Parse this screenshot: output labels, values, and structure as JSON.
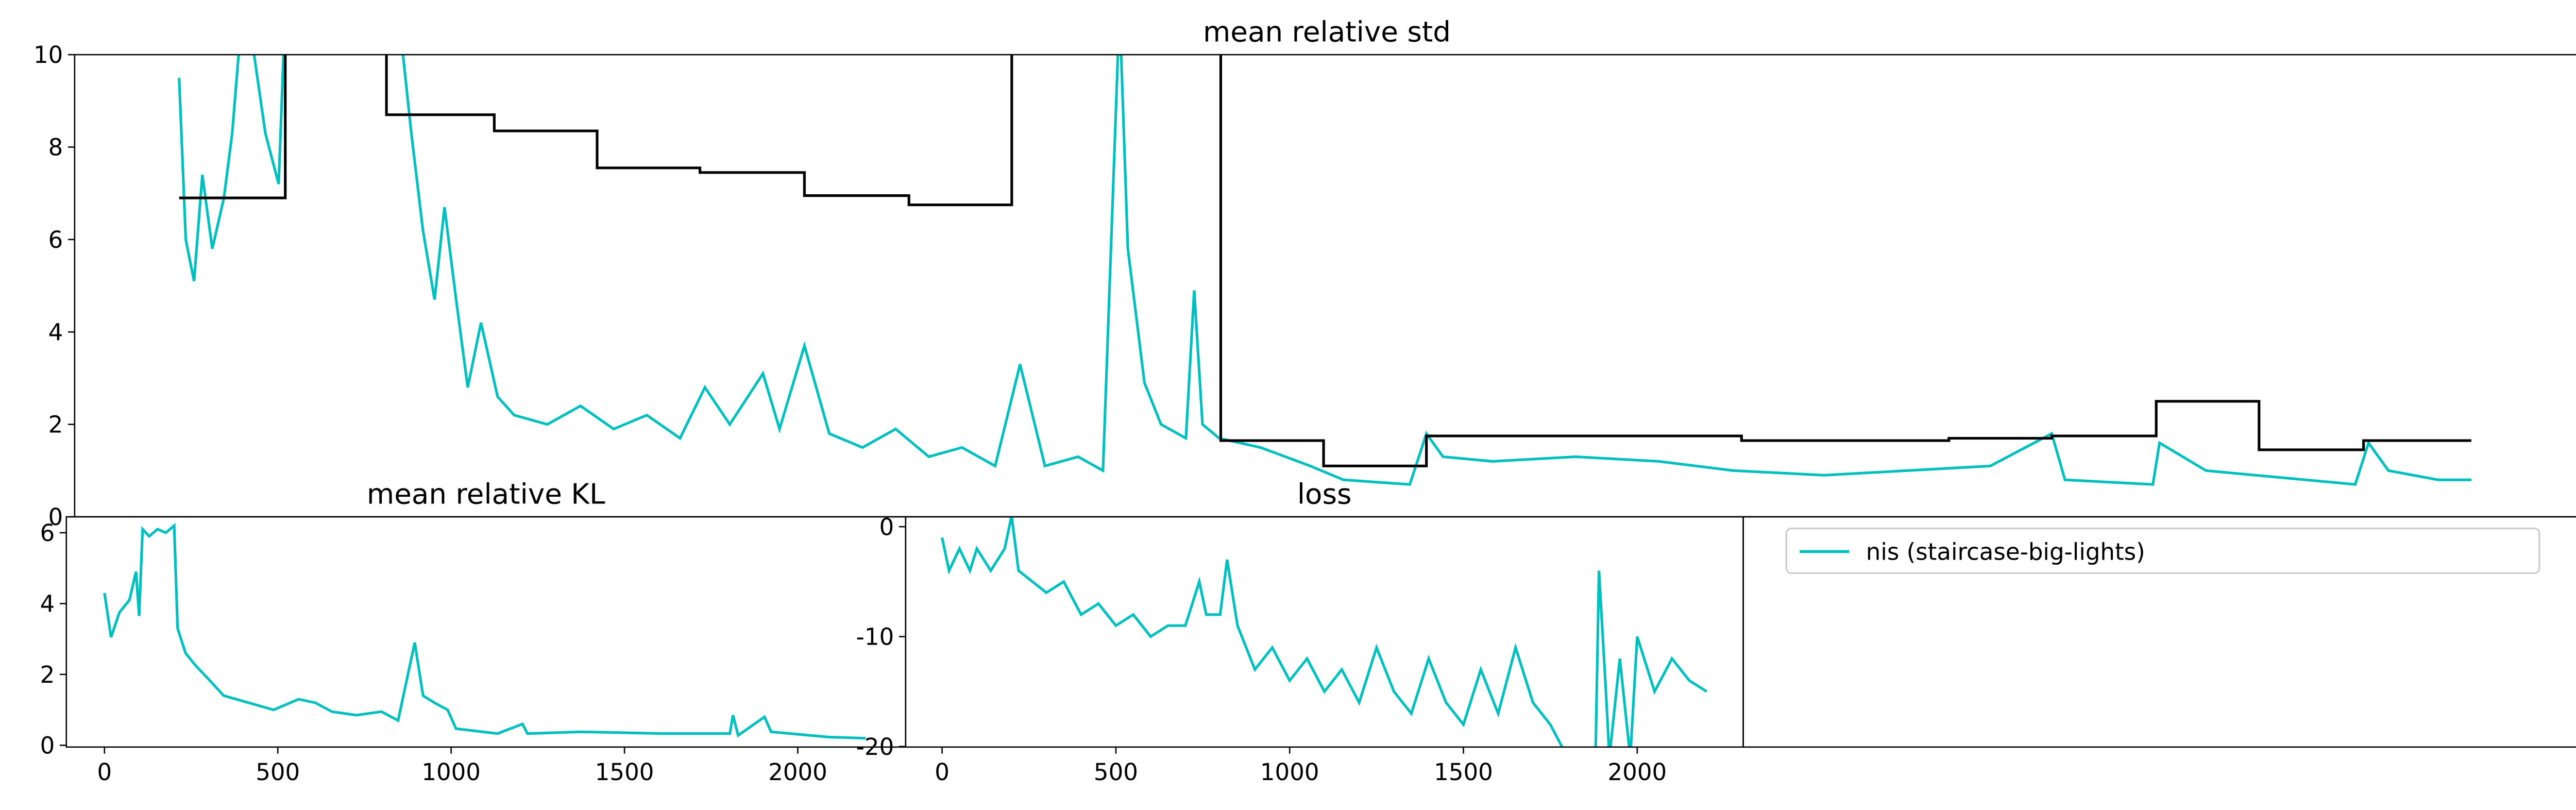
{
  "chart_data": [
    {
      "type": "line",
      "title": "mean relative std",
      "xlim": [
        0,
        1510
      ],
      "ylim": [
        0,
        10
      ],
      "yticks": [
        0,
        2,
        4,
        6,
        8,
        10
      ],
      "series": [
        {
          "color": "#00bfbf",
          "x": [
            63,
            67,
            72,
            77,
            83,
            90,
            95,
            100,
            107,
            115,
            123,
            127,
            160,
            195,
            203,
            210,
            217,
            223,
            230,
            237,
            245,
            255,
            265,
            285,
            305,
            325,
            345,
            365,
            380,
            395,
            415,
            425,
            440,
            455,
            475,
            495,
            515,
            535,
            555,
            570,
            585,
            605,
            620,
            630,
            635,
            645,
            655,
            670,
            675,
            680,
            690,
            715,
            745,
            765,
            805,
            815,
            825,
            855,
            905,
            955,
            1000,
            1055,
            1105,
            1155,
            1192,
            1200,
            1253,
            1257,
            1285,
            1315,
            1375,
            1383,
            1395,
            1425,
            1445
          ],
          "values": [
            9.5,
            6,
            5.1,
            7.4,
            5.8,
            6.9,
            8.3,
            10.5,
            10.3,
            8.3,
            7.2,
            11,
            12,
            11,
            8.3,
            6.2,
            4.7,
            6.7,
            4.7,
            2.8,
            4.2,
            2.6,
            2.2,
            2.0,
            2.4,
            1.9,
            2.2,
            1.7,
            2.8,
            2.0,
            3.1,
            1.9,
            3.7,
            1.8,
            1.5,
            1.9,
            1.3,
            1.5,
            1.1,
            3.3,
            1.1,
            1.3,
            1.0,
            11,
            5.8,
            2.9,
            2.0,
            1.7,
            4.9,
            2.0,
            1.7,
            1.5,
            1.1,
            0.8,
            0.7,
            1.8,
            1.3,
            1.2,
            1.3,
            1.2,
            1.0,
            0.9,
            1.0,
            1.1,
            1.8,
            0.8,
            0.7,
            1.6,
            1.0,
            0.9,
            0.7,
            1.6,
            1.0,
            0.8,
            0.8
          ]
        },
        {
          "color": "#000000",
          "x": [
            63,
            127,
            127,
            188,
            188,
            253,
            253,
            315,
            315,
            377,
            377,
            440,
            440,
            503,
            503,
            565,
            565,
            691,
            691,
            753,
            753,
            815,
            815,
            1005,
            1005,
            1130,
            1130,
            1192,
            1192,
            1255,
            1255,
            1317,
            1317,
            1380,
            1380,
            1445
          ],
          "values": [
            6.9,
            6.9,
            12,
            12,
            8.7,
            8.7,
            8.35,
            8.35,
            7.55,
            7.55,
            7.45,
            7.45,
            6.95,
            6.95,
            6.75,
            6.75,
            12,
            12,
            1.65,
            1.65,
            1.1,
            1.1,
            1.75,
            1.75,
            1.65,
            1.65,
            1.7,
            1.7,
            1.75,
            1.75,
            2.5,
            2.5,
            1.45,
            1.45,
            1.65,
            1.65
          ]
        }
      ]
    },
    {
      "type": "line",
      "title": "mean relative KL",
      "xlim": [
        -110,
        2311
      ],
      "xticks": [
        0,
        500,
        1000,
        1500,
        2000
      ],
      "ylim": [
        -0.05,
        6.45
      ],
      "yticks": [
        0,
        2,
        4,
        6
      ],
      "series": [
        {
          "color": "#00bfbf",
          "x": [
            0,
            19,
            43,
            72,
            91,
            100,
            110,
            129,
            153,
            177,
            201,
            211,
            234,
            263,
            297,
            344,
            416,
            488,
            560,
            608,
            656,
            727,
            799,
            847,
            895,
            919,
            952,
            990,
            1014,
            1134,
            1206,
            1220,
            1373,
            1612,
            1804,
            1813,
            1828,
            1904,
            1923,
            2091,
            2196
          ],
          "values": [
            4.3,
            3.05,
            3.75,
            4.1,
            4.9,
            3.65,
            6.1,
            5.9,
            6.1,
            6.0,
            6.2,
            3.3,
            2.6,
            2.25,
            1.9,
            1.4,
            1.2,
            1.0,
            1.3,
            1.2,
            0.95,
            0.85,
            0.95,
            0.7,
            2.9,
            1.4,
            1.2,
            1.0,
            0.47,
            0.33,
            0.6,
            0.33,
            0.38,
            0.33,
            0.33,
            0.85,
            0.28,
            0.8,
            0.38,
            0.23,
            0.2
          ]
        }
      ]
    },
    {
      "type": "line",
      "title": "loss",
      "xlim": [
        -105,
        2305
      ],
      "xticks": [
        0,
        500,
        1000,
        1500,
        2000
      ],
      "ylim": [
        -20.05,
        0.9
      ],
      "yticks": [
        0,
        -10,
        -20
      ],
      "series": [
        {
          "color": "#00bfbf",
          "x": [
            0,
            20,
            50,
            80,
            100,
            140,
            180,
            200,
            220,
            300,
            350,
            400,
            450,
            500,
            550,
            600,
            650,
            700,
            740,
            760,
            800,
            820,
            850,
            900,
            950,
            1000,
            1050,
            1100,
            1150,
            1200,
            1250,
            1300,
            1350,
            1400,
            1450,
            1500,
            1550,
            1600,
            1650,
            1700,
            1750,
            1800,
            1830,
            1880,
            1890,
            1910,
            1920,
            1950,
            1980,
            2000,
            2050,
            2100,
            2150,
            2200
          ],
          "values": [
            -1,
            -4,
            -2,
            -4,
            -2,
            -4,
            -2,
            1,
            -4,
            -6,
            -5,
            -8,
            -7,
            -9,
            -8,
            -10,
            -9,
            -9,
            -5,
            -8,
            -8,
            -3,
            -9,
            -13,
            -11,
            -14,
            -12,
            -15,
            -13,
            -16,
            -11,
            -15,
            -17,
            -12,
            -16,
            -18,
            -13,
            -17,
            -11,
            -16,
            -18,
            -21,
            null,
            -21,
            -4,
            -15,
            -21,
            -12,
            -21,
            -10,
            -15,
            -12,
            -14,
            -15
          ]
        }
      ]
    },
    {
      "type": "legend",
      "entries": [
        {
          "name": "nis (staircase-big-lights)",
          "color": "#00bfbf"
        }
      ]
    }
  ]
}
